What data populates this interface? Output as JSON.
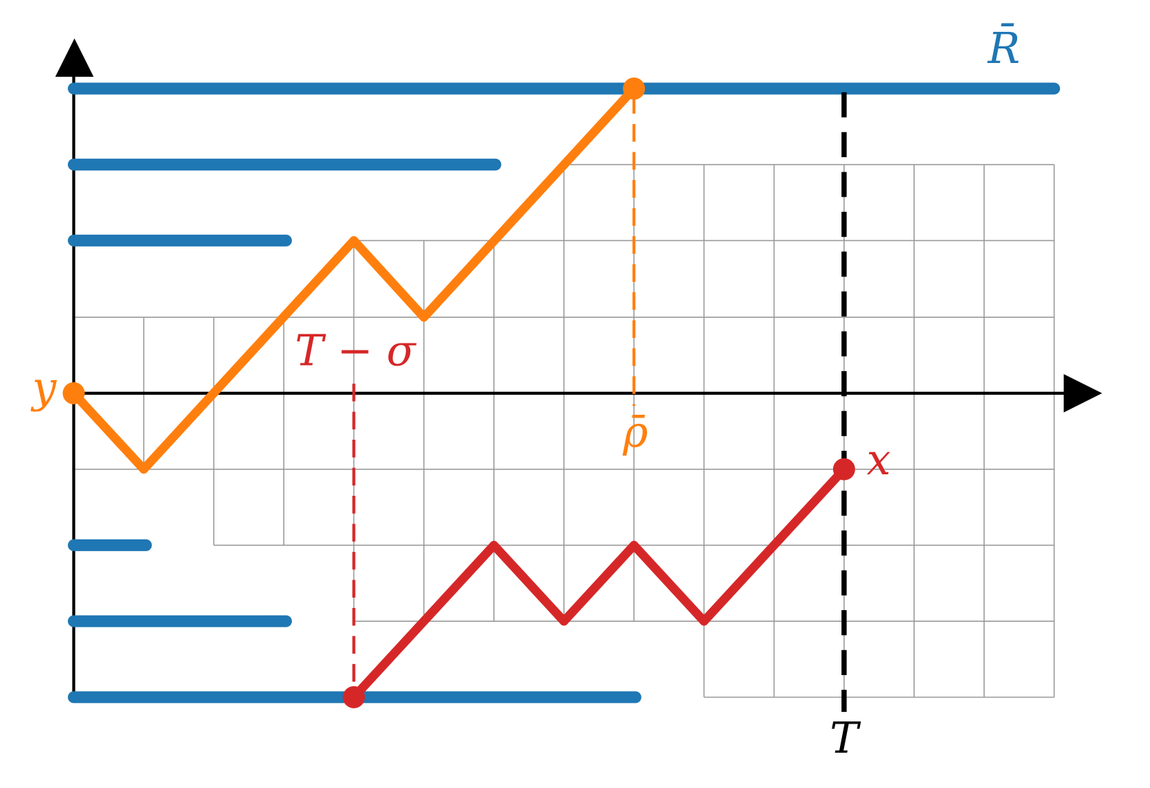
{
  "labels": {
    "r_bar": "R̄",
    "y": "y",
    "t_minus_sigma": "T − σ",
    "rho_bar": "ρ̄",
    "x": "x",
    "t": "T"
  }
}
